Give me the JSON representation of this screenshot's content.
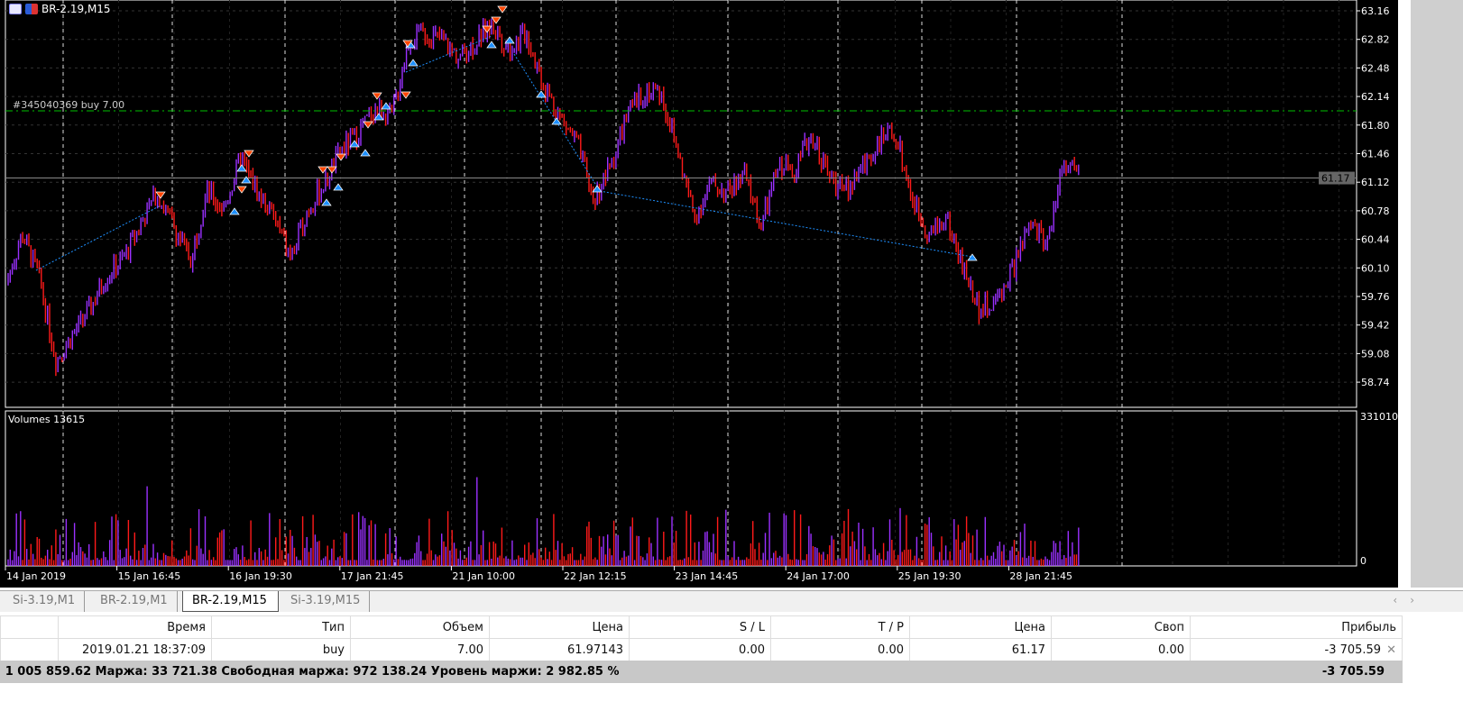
{
  "window": {
    "title": "BR-2.19,M15"
  },
  "chart": {
    "colors": {
      "background": "#000000",
      "bull": "#9b30ff",
      "bear": "#ff1a1a",
      "grid": "#ffffff",
      "order_line": "#00c000",
      "bid_line": "#888888",
      "buy_arrow": "#1e90ff",
      "sell_arrow": "#ff4500"
    },
    "order_label": "#345040369 buy 7.00",
    "order_price": 61.97,
    "bid_label": "61.17",
    "bid_price": 61.17,
    "price_ticks": [
      "63.16",
      "62.82",
      "62.48",
      "62.14",
      "61.80",
      "61.46",
      "61.12",
      "60.78",
      "60.44",
      "60.10",
      "59.76",
      "59.42",
      "59.08",
      "58.74"
    ],
    "volume_label": "Volumes 13615",
    "volume_ticks": [
      "331010",
      "0"
    ],
    "time_ticks": [
      "14 Jan 2019",
      "15 Jan 16:45",
      "16 Jan 19:30",
      "17 Jan 21:45",
      "21 Jan 10:00",
      "22 Jan 12:15",
      "23 Jan 14:45",
      "24 Jan 17:00",
      "25 Jan 19:30",
      "28 Jan 21:45"
    ]
  },
  "chart_data": {
    "type": "bar",
    "ylim": [
      58.6,
      63.3
    ],
    "close_path": [
      59.9,
      60.5,
      60.0,
      59.0,
      59.3,
      59.6,
      60.0,
      60.2,
      60.6,
      61.0,
      60.6,
      60.2,
      61.0,
      60.8,
      61.4,
      61.0,
      60.7,
      60.2,
      60.8,
      61.1,
      61.5,
      61.7,
      62.0,
      61.9,
      62.8,
      62.9,
      62.8,
      62.6,
      62.8,
      63.0,
      62.7,
      62.9,
      62.3,
      61.9,
      61.6,
      60.9,
      61.3,
      61.9,
      62.2,
      62.2,
      61.5,
      60.7,
      61.1,
      61.0,
      61.2,
      60.6,
      61.3,
      61.3,
      61.7,
      61.2,
      61.0,
      61.3,
      61.6,
      61.7,
      60.9,
      60.5,
      60.7,
      60.1,
      59.6,
      59.7,
      60.1,
      60.6,
      60.4,
      61.4,
      61.2
    ],
    "volume_max": 331010
  },
  "tabs": [
    {
      "label": "Si-3.19,M1"
    },
    {
      "label": "BR-2.19,M1"
    },
    {
      "label": "BR-2.19,M15",
      "active": true
    },
    {
      "label": "Si-3.19,M15"
    }
  ],
  "table": {
    "headers": [
      "",
      "Время",
      "Тип",
      "Объем",
      "Цена",
      "S / L",
      "T / P",
      "Цена",
      "Своп",
      "Прибыль"
    ],
    "row": [
      "",
      "2019.01.21 18:37:09",
      "buy",
      "7.00",
      "61.97143",
      "0.00",
      "0.00",
      "61.17",
      "0.00",
      "-3 705.59"
    ]
  },
  "status": {
    "text": ": 1 005 859.62  Маржа: 33 721.38  Свободная маржа: 972 138.24  Уровень маржи: 2 982.85 %",
    "total": "-3 705.59"
  }
}
